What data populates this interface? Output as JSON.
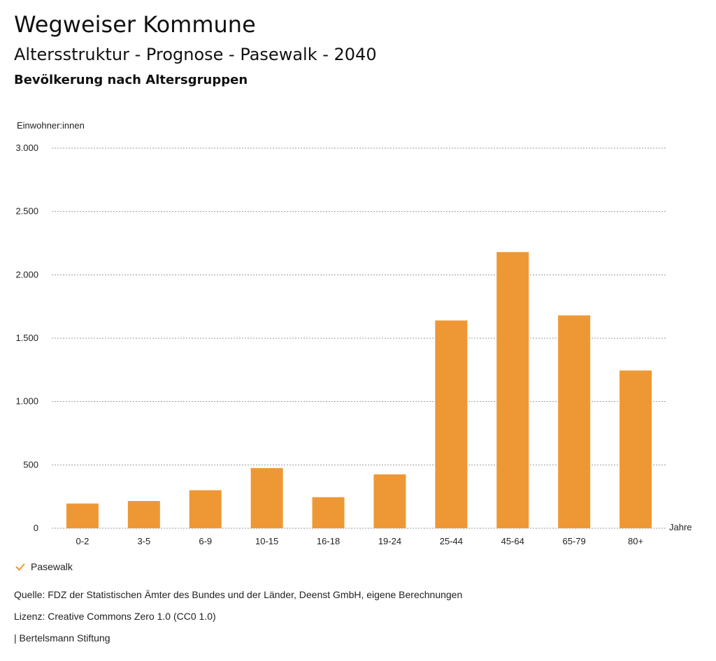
{
  "header": {
    "title": "Wegweiser Kommune",
    "subtitle": "Altersstruktur - Prognose - Pasewalk - 2040",
    "subsubtitle": "Bevölkerung nach Altersgruppen"
  },
  "chart_data": {
    "type": "bar",
    "categories": [
      "0-2",
      "3-5",
      "6-9",
      "10-15",
      "16-18",
      "19-24",
      "25-44",
      "45-64",
      "65-79",
      "80+"
    ],
    "series": [
      {
        "name": "Pasewalk",
        "values": [
          195,
          215,
          300,
          475,
          245,
          425,
          1640,
          2180,
          1680,
          1245
        ],
        "color": "#ee9835"
      }
    ],
    "ylabel": "Einwohner:innen",
    "xlabel": "Jahre",
    "ylim": [
      0,
      3000
    ],
    "yticks": [
      0,
      500,
      1000,
      1500,
      2000,
      2500,
      3000
    ],
    "ytick_labels": [
      "0",
      "500",
      "1.000",
      "1.500",
      "2.000",
      "2.500",
      "3.000"
    ],
    "grid": true,
    "legend_position": "bottom-left"
  },
  "legend": {
    "label": "Pasewalk",
    "icon": "check-icon",
    "color": "#ee9835"
  },
  "footer": {
    "source": "Quelle: FDZ der Statistischen Ämter des Bundes und der Länder, Deenst GmbH, eigene Berechnungen",
    "license": "Lizenz: Creative Commons Zero 1.0 (CC0 1.0)",
    "publisher": "| Bertelsmann Stiftung"
  }
}
